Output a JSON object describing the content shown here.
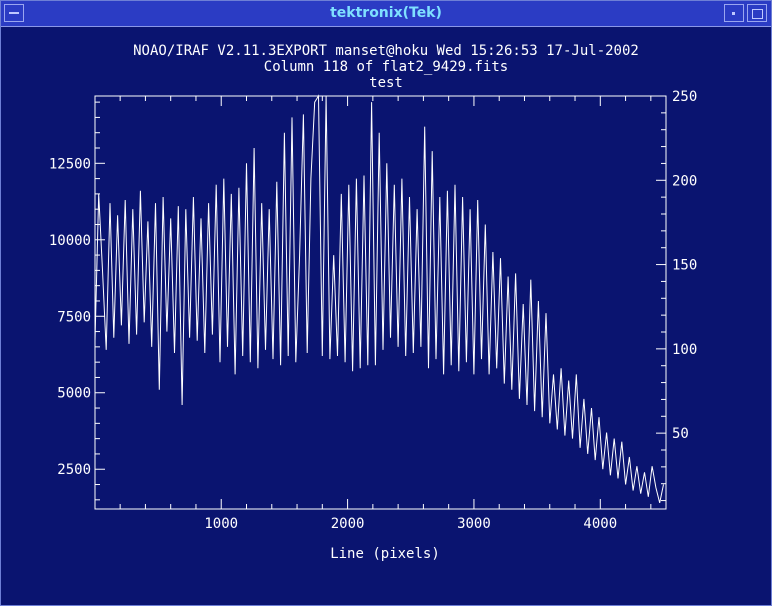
{
  "window": {
    "title": "tektronix(Tek)"
  },
  "chart_data": {
    "type": "line",
    "title_lines": [
      "NOAO/IRAF V2.11.3EXPORT manset@hoku Wed 15:26:53 17-Jul-2002",
      "Column 118 of flat2_9429.fits",
      "test"
    ],
    "xlabel": "Line (pixels)",
    "ylabel": "",
    "xlim": [
      1,
      4520
    ],
    "ylim": [
      1200,
      14700
    ],
    "y2lim": [
      5,
      250
    ],
    "x_ticks": [
      "1000",
      "2000",
      "3000",
      "4000"
    ],
    "y_ticks": [
      "2500",
      "5000",
      "7500",
      "10000",
      "12500"
    ],
    "y2_ticks": [
      "50",
      "100",
      "150",
      "200",
      "250"
    ],
    "series": [
      {
        "x": [
          1,
          30,
          60,
          90,
          120,
          150,
          180,
          210,
          240,
          270,
          300,
          330,
          360,
          390,
          420,
          450,
          480,
          510,
          540,
          570,
          600,
          630,
          660,
          690,
          720,
          750,
          780,
          810,
          840,
          870,
          900,
          930,
          960,
          990,
          1020,
          1050,
          1080,
          1110,
          1140,
          1170,
          1200,
          1230,
          1260,
          1290,
          1320,
          1350,
          1380,
          1410,
          1440,
          1470,
          1500,
          1530,
          1560,
          1590,
          1620,
          1650,
          1680,
          1710,
          1740,
          1770,
          1800,
          1830,
          1860,
          1890,
          1920,
          1950,
          1980,
          2010,
          2040,
          2070,
          2100,
          2130,
          2160,
          2190,
          2220,
          2250,
          2280,
          2310,
          2340,
          2370,
          2400,
          2430,
          2460,
          2490,
          2520,
          2550,
          2580,
          2610,
          2640,
          2670,
          2700,
          2730,
          2760,
          2790,
          2820,
          2850,
          2880,
          2910,
          2940,
          2970,
          3000,
          3030,
          3060,
          3090,
          3120,
          3150,
          3180,
          3210,
          3240,
          3270,
          3300,
          3330,
          3360,
          3390,
          3420,
          3450,
          3480,
          3510,
          3540,
          3570,
          3600,
          3630,
          3660,
          3690,
          3720,
          3750,
          3780,
          3810,
          3840,
          3870,
          3900,
          3930,
          3960,
          3990,
          4020,
          4050,
          4080,
          4110,
          4140,
          4170,
          4200,
          4230,
          4260,
          4290,
          4320,
          4350,
          4380,
          4410,
          4440,
          4470,
          4500
        ],
        "values": [
          6700,
          11500,
          9000,
          6400,
          11200,
          6800,
          10800,
          7200,
          11300,
          6600,
          11000,
          6900,
          11600,
          7300,
          10600,
          6500,
          11200,
          5100,
          11400,
          7000,
          10700,
          6300,
          11100,
          4600,
          11000,
          6800,
          11400,
          6700,
          10700,
          6300,
          11200,
          6900,
          11800,
          6000,
          12000,
          6500,
          11500,
          5600,
          11700,
          6200,
          12500,
          6000,
          13000,
          5800,
          11200,
          6400,
          11000,
          6100,
          11900,
          5900,
          13500,
          6200,
          14000,
          6000,
          9500,
          14100,
          6300,
          12000,
          14500,
          15000,
          6200,
          14700,
          6100,
          9500,
          6200,
          11500,
          6000,
          11800,
          5700,
          12000,
          5800,
          12100,
          5900,
          14500,
          5900,
          13500,
          6400,
          12500,
          6800,
          11800,
          6500,
          12000,
          6200,
          11400,
          6300,
          11000,
          6500,
          13700,
          5800,
          12900,
          6100,
          11400,
          5600,
          11600,
          5900,
          11800,
          5700,
          11400,
          6000,
          11000,
          5600,
          11300,
          6100,
          10500,
          5600,
          9600,
          5800,
          9400,
          5300,
          8800,
          5100,
          8900,
          4800,
          7900,
          4600,
          8700,
          4400,
          8000,
          4200,
          7600,
          4000,
          5600,
          3800,
          5800,
          3600,
          5400,
          3500,
          5600,
          3200,
          4800,
          3000,
          4500,
          2800,
          4200,
          2500,
          3700,
          2300,
          3500,
          2200,
          3400,
          2000,
          2900,
          1800,
          2600,
          1700,
          2400,
          1600,
          2600,
          1900,
          1400,
          2000
        ]
      }
    ]
  }
}
